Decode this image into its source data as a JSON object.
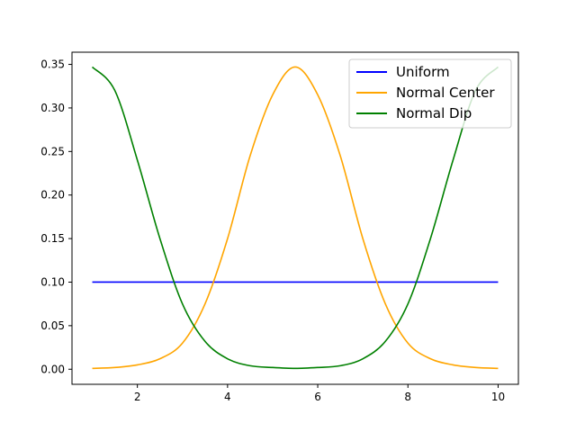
{
  "chart_data": {
    "type": "line",
    "title": "",
    "xlabel": "",
    "ylabel": "",
    "xlim": [
      0.55,
      10.45
    ],
    "ylim": [
      -0.0173,
      0.364
    ],
    "xticks": [
      2,
      4,
      6,
      8,
      10
    ],
    "xtick_labels": [
      "2",
      "4",
      "6",
      "8",
      "10"
    ],
    "yticks": [
      0.0,
      0.05,
      0.1,
      0.15,
      0.2,
      0.25,
      0.3,
      0.35
    ],
    "ytick_labels": [
      "0.00",
      "0.05",
      "0.10",
      "0.15",
      "0.20",
      "0.25",
      "0.30",
      "0.35"
    ],
    "grid": false,
    "legend_position": "top-right",
    "x": [
      1.0,
      1.5,
      2.0,
      2.5,
      3.0,
      3.5,
      4.0,
      4.5,
      5.0,
      5.5,
      6.0,
      6.5,
      7.0,
      7.5,
      8.0,
      8.5,
      9.0,
      9.5,
      10.0
    ],
    "series": [
      {
        "name": "Uniform",
        "color": "#0000ff",
        "values": [
          0.1,
          0.1,
          0.1,
          0.1,
          0.1,
          0.1,
          0.1,
          0.1,
          0.1,
          0.1,
          0.1,
          0.1,
          0.1,
          0.1,
          0.1,
          0.1,
          0.1,
          0.1,
          0.1
        ]
      },
      {
        "name": "Normal Center",
        "color": "#ffa500",
        "values": [
          0.001,
          0.002,
          0.005,
          0.012,
          0.03,
          0.075,
          0.15,
          0.245,
          0.315,
          0.347,
          0.315,
          0.245,
          0.15,
          0.075,
          0.03,
          0.012,
          0.005,
          0.002,
          0.001
        ]
      },
      {
        "name": "Normal Dip",
        "color": "#008000",
        "values": [
          0.347,
          0.32,
          0.24,
          0.15,
          0.075,
          0.032,
          0.012,
          0.004,
          0.002,
          0.001,
          0.002,
          0.004,
          0.012,
          0.032,
          0.075,
          0.15,
          0.24,
          0.32,
          0.347
        ]
      }
    ]
  }
}
